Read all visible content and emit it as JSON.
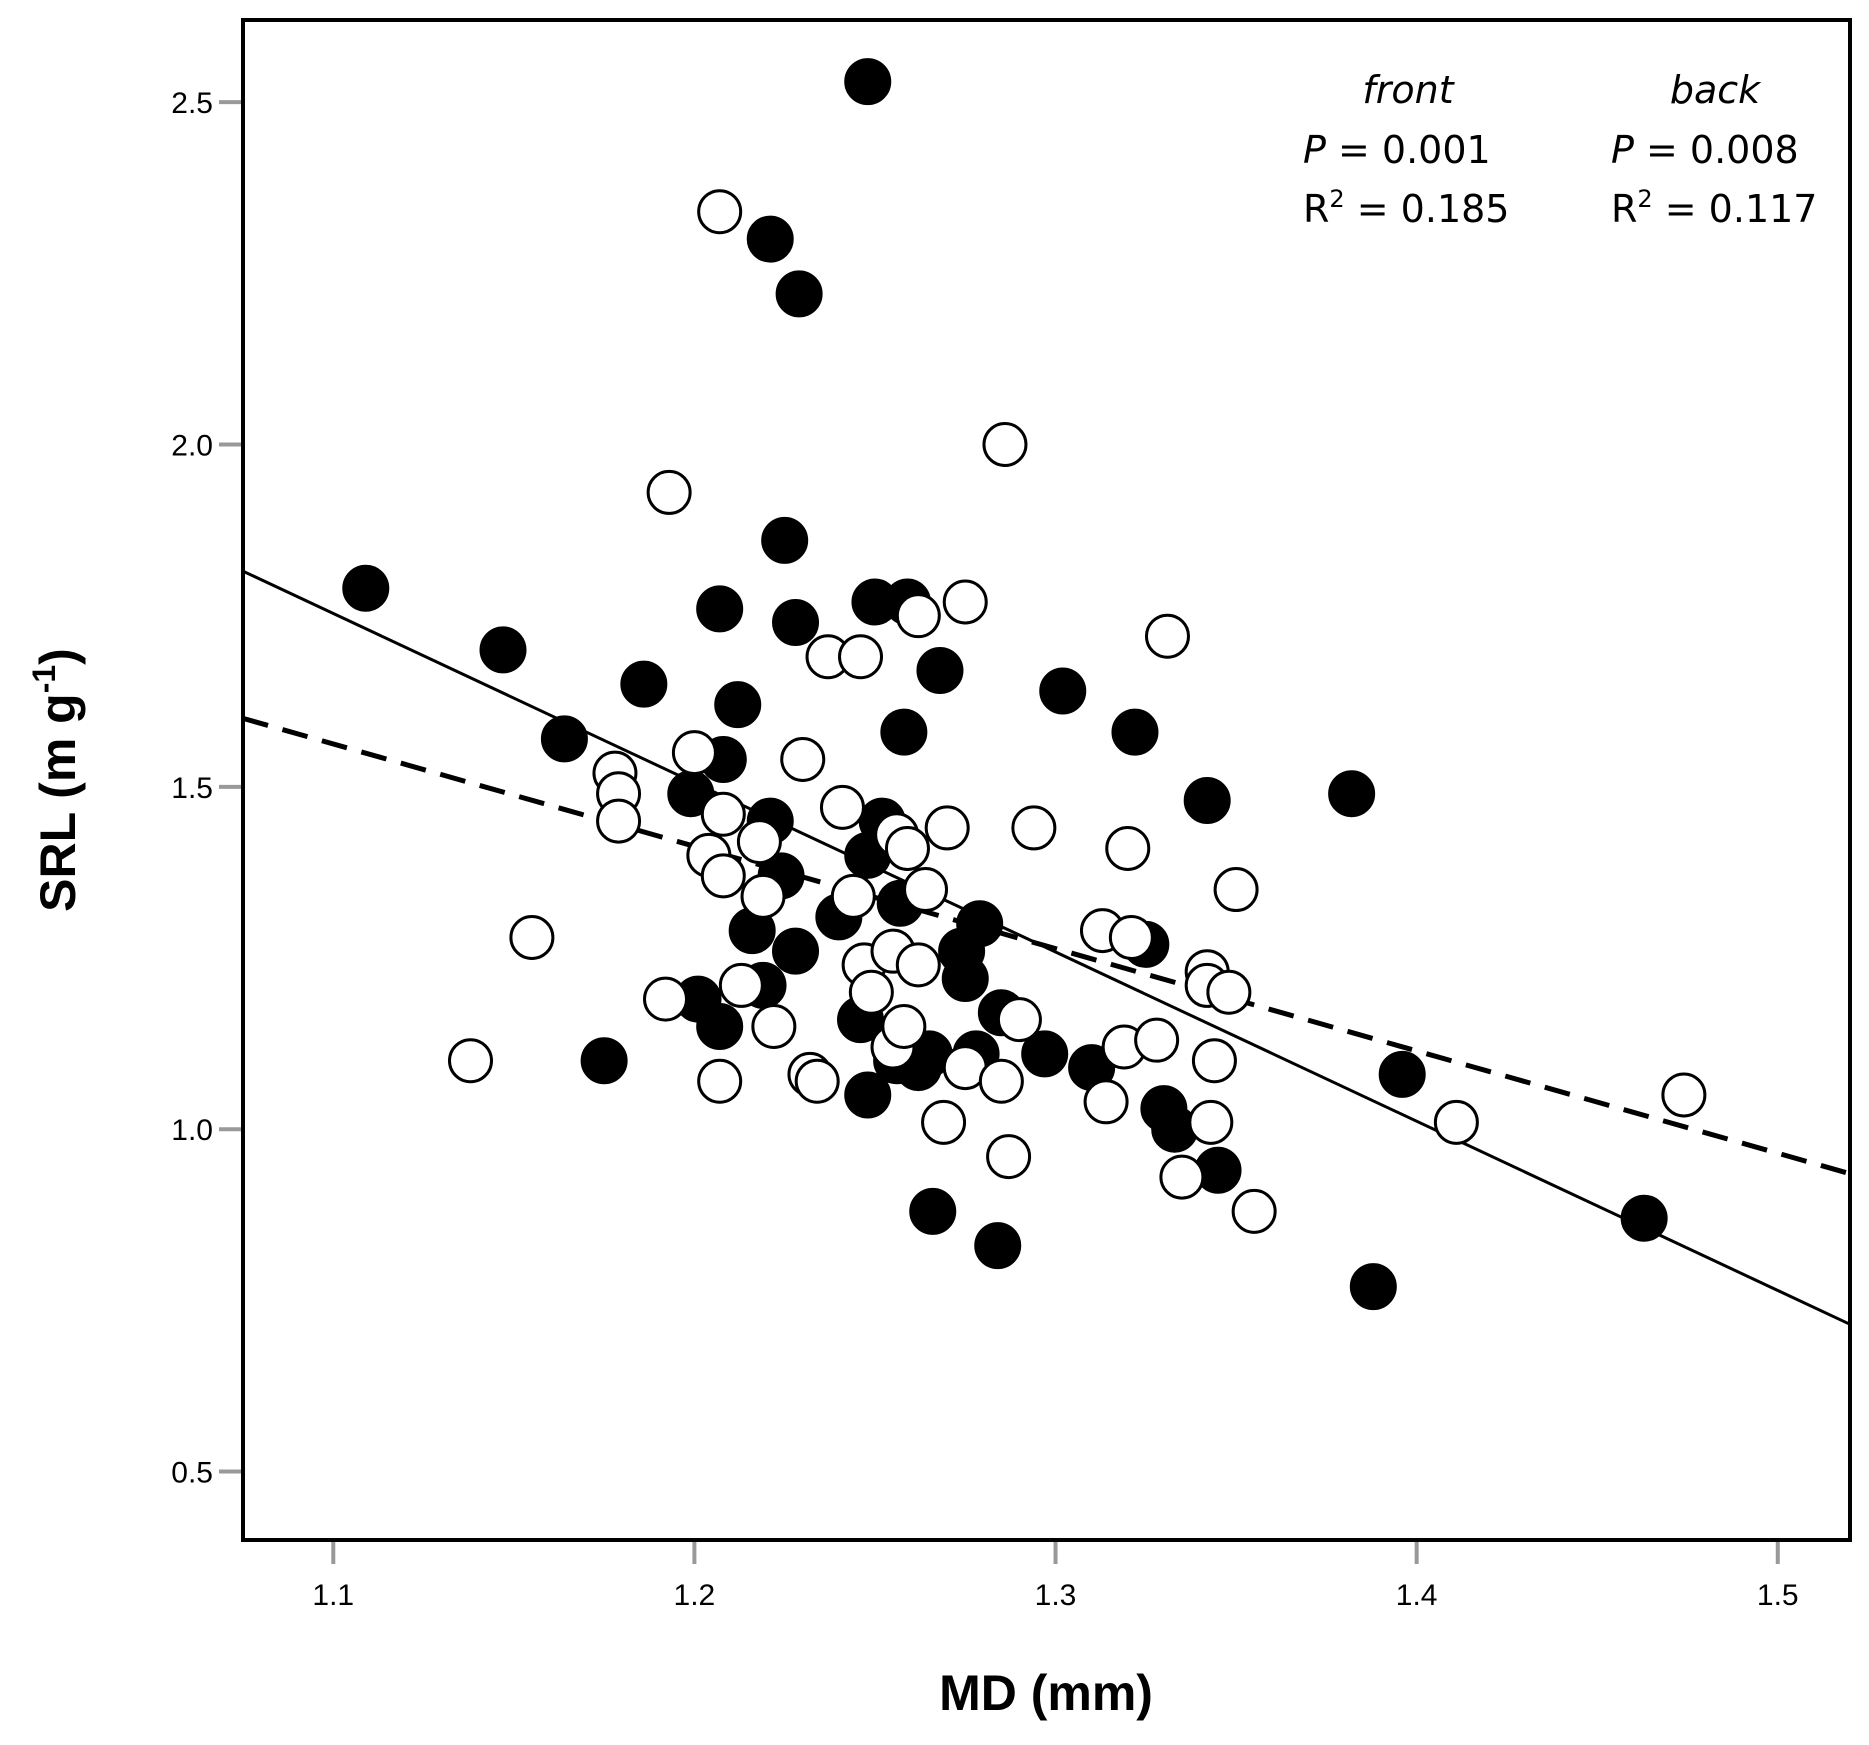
{
  "chart_data": {
    "type": "scatter",
    "title": "",
    "xlabel": "MD (mm)",
    "ylabel_main": "SRL (m g",
    "ylabel_sup": "-1",
    "ylabel_close": ")",
    "xlim": [
      1.075,
      1.52
    ],
    "ylim": [
      0.4,
      2.62
    ],
    "xticks": [
      1.1,
      1.2,
      1.3,
      1.4,
      1.5
    ],
    "xtick_labels": [
      "1.1",
      "1.2",
      "1.3",
      "1.4",
      "1.5"
    ],
    "yticks": [
      0.5,
      1.0,
      1.5,
      2.0,
      2.5
    ],
    "ytick_labels": [
      "0.5",
      "1.0",
      "1.5",
      "2.0",
      "2.5"
    ],
    "grid": false,
    "annotations": {
      "front": {
        "header": "front",
        "p_label": "P",
        "p_text": " = 0.001",
        "r_label": "R",
        "r_sup": "2",
        "r_text": " = 0.185"
      },
      "back": {
        "header": "back",
        "p_label": "P",
        "p_text": " = 0.008",
        "r_label": "R",
        "r_sup": "2",
        "r_text": " = 0.117"
      }
    },
    "series": [
      {
        "name": "front",
        "marker": "filled-circle",
        "color": "#000000",
        "points": [
          [
            1.109,
            1.79
          ],
          [
            1.147,
            1.7
          ],
          [
            1.164,
            1.57
          ],
          [
            1.175,
            1.1
          ],
          [
            1.186,
            1.65
          ],
          [
            1.199,
            1.49
          ],
          [
            1.201,
            1.19
          ],
          [
            1.207,
            1.15
          ],
          [
            1.208,
            1.54
          ],
          [
            1.207,
            1.76
          ],
          [
            1.212,
            1.62
          ],
          [
            1.216,
            1.29
          ],
          [
            1.219,
            1.21
          ],
          [
            1.221,
            1.45
          ],
          [
            1.224,
            1.37
          ],
          [
            1.221,
            2.3
          ],
          [
            1.225,
            1.86
          ],
          [
            1.228,
            1.74
          ],
          [
            1.228,
            1.26
          ],
          [
            1.229,
            2.22
          ],
          [
            1.24,
            1.31
          ],
          [
            1.246,
            1.16
          ],
          [
            1.248,
            1.05
          ],
          [
            1.248,
            1.4
          ],
          [
            1.25,
            1.77
          ],
          [
            1.248,
            2.53
          ],
          [
            1.252,
            1.45
          ],
          [
            1.256,
            1.1
          ],
          [
            1.257,
            1.33
          ],
          [
            1.258,
            1.58
          ],
          [
            1.259,
            1.77
          ],
          [
            1.262,
            1.09
          ],
          [
            1.265,
            1.11
          ],
          [
            1.266,
            0.88
          ],
          [
            1.268,
            1.67
          ],
          [
            1.274,
            1.26
          ],
          [
            1.275,
            1.22
          ],
          [
            1.279,
            1.3
          ],
          [
            1.278,
            1.11
          ],
          [
            1.284,
            0.83
          ],
          [
            1.285,
            1.17
          ],
          [
            1.297,
            1.11
          ],
          [
            1.302,
            1.64
          ],
          [
            1.31,
            1.09
          ],
          [
            1.322,
            1.58
          ],
          [
            1.325,
            1.27
          ],
          [
            1.33,
            1.03
          ],
          [
            1.333,
            1.0
          ],
          [
            1.342,
            1.48
          ],
          [
            1.345,
            0.94
          ],
          [
            1.382,
            1.49
          ],
          [
            1.388,
            0.77
          ],
          [
            1.396,
            1.08
          ],
          [
            1.463,
            0.87
          ]
        ]
      },
      {
        "name": "back",
        "marker": "open-circle",
        "color": "#000000",
        "points": [
          [
            1.138,
            1.1
          ],
          [
            1.155,
            1.28
          ],
          [
            1.178,
            1.52
          ],
          [
            1.179,
            1.49
          ],
          [
            1.179,
            1.45
          ],
          [
            1.192,
            1.19
          ],
          [
            1.193,
            1.93
          ],
          [
            1.2,
            1.55
          ],
          [
            1.204,
            1.4
          ],
          [
            1.207,
            1.07
          ],
          [
            1.208,
            1.46
          ],
          [
            1.208,
            1.37
          ],
          [
            1.207,
            2.34
          ],
          [
            1.213,
            1.21
          ],
          [
            1.218,
            1.42
          ],
          [
            1.219,
            1.34
          ],
          [
            1.222,
            1.15
          ],
          [
            1.23,
            1.54
          ],
          [
            1.232,
            1.08
          ],
          [
            1.234,
            1.07
          ],
          [
            1.237,
            1.69
          ],
          [
            1.241,
            1.47
          ],
          [
            1.244,
            1.34
          ],
          [
            1.246,
            1.69
          ],
          [
            1.247,
            1.24
          ],
          [
            1.249,
            1.2
          ],
          [
            1.255,
            1.12
          ],
          [
            1.256,
            1.43
          ],
          [
            1.255,
            1.26
          ],
          [
            1.258,
            1.15
          ],
          [
            1.259,
            1.41
          ],
          [
            1.262,
            1.24
          ],
          [
            1.262,
            1.75
          ],
          [
            1.264,
            1.35
          ],
          [
            1.269,
            1.01
          ],
          [
            1.27,
            1.44
          ],
          [
            1.275,
            1.77
          ],
          [
            1.275,
            1.09
          ],
          [
            1.285,
            1.07
          ],
          [
            1.286,
            2.0
          ],
          [
            1.287,
            0.96
          ],
          [
            1.29,
            1.16
          ],
          [
            1.294,
            1.44
          ],
          [
            1.313,
            1.29
          ],
          [
            1.314,
            1.04
          ],
          [
            1.319,
            1.12
          ],
          [
            1.32,
            1.41
          ],
          [
            1.321,
            1.28
          ],
          [
            1.328,
            1.13
          ],
          [
            1.331,
            1.72
          ],
          [
            1.335,
            0.93
          ],
          [
            1.342,
            1.23
          ],
          [
            1.342,
            1.21
          ],
          [
            1.344,
            1.1
          ],
          [
            1.343,
            1.01
          ],
          [
            1.348,
            1.2
          ],
          [
            1.35,
            1.35
          ],
          [
            1.355,
            0.88
          ],
          [
            1.411,
            1.01
          ],
          [
            1.474,
            1.05
          ]
        ]
      }
    ],
    "fit_lines": [
      {
        "name": "front",
        "style": "solid",
        "x": [
          1.075,
          1.52
        ],
        "y": [
          1.815,
          0.715
        ]
      },
      {
        "name": "back",
        "style": "dashed",
        "x": [
          1.075,
          1.52
        ],
        "y": [
          1.6,
          0.935
        ]
      }
    ]
  }
}
